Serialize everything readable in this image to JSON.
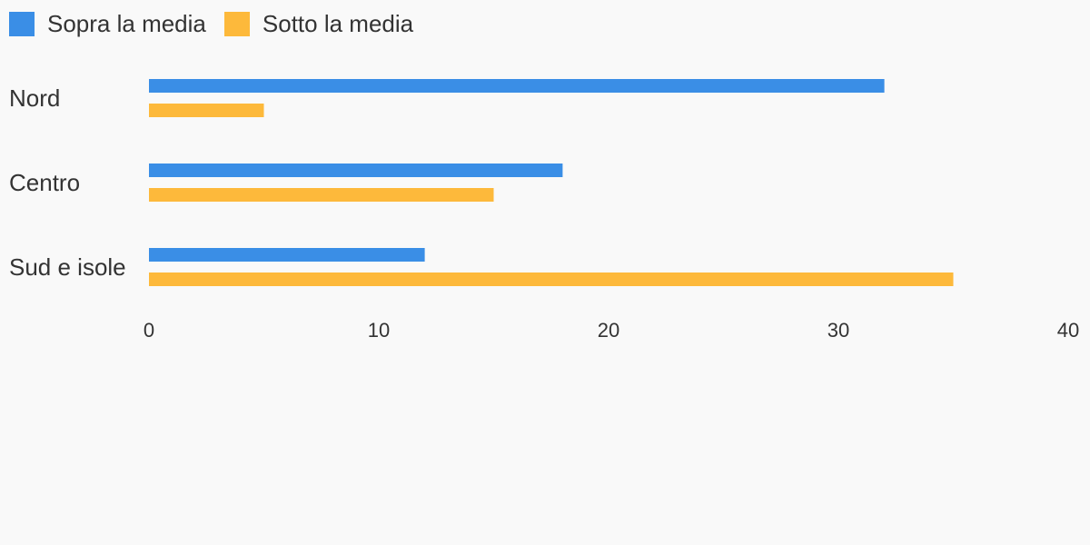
{
  "colors": {
    "background": "#f9f9f9",
    "text": "#333333"
  },
  "chart_data": {
    "type": "bar",
    "orientation": "horizontal",
    "categories": [
      "Nord",
      "Centro",
      "Sud e isole"
    ],
    "series": [
      {
        "name": "Sopra la media",
        "color": "#3a8ee6",
        "values": [
          32,
          18,
          12
        ]
      },
      {
        "name": "Sotto la media",
        "color": "#fdb93b",
        "values": [
          5,
          15,
          35
        ]
      }
    ],
    "xlim": [
      0,
      40
    ],
    "xticks": [
      "0",
      "10",
      "20",
      "30",
      "40"
    ],
    "legend_position": "top-left",
    "grid": false,
    "title": "",
    "xlabel": "",
    "ylabel": ""
  }
}
